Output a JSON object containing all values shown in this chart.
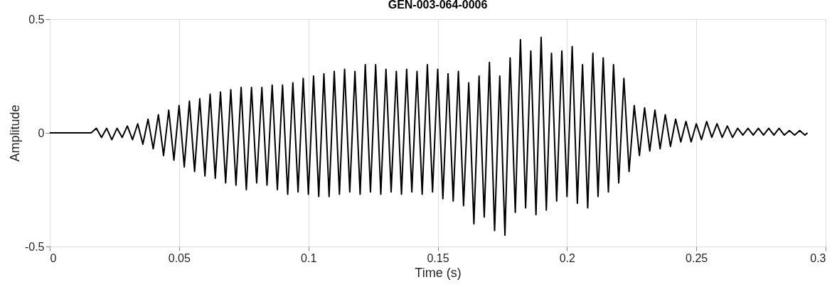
{
  "chart_data": {
    "type": "line",
    "title": "GEN-003-064-0006",
    "xlabel": "Time (s)",
    "ylabel": "Amplitude",
    "xlim": [
      0,
      0.3
    ],
    "xticks": [
      0,
      0.05,
      0.1,
      0.15,
      0.2,
      0.25,
      0.3
    ],
    "ylim": [
      -0.5,
      0.5
    ],
    "yticks": [
      -0.5,
      0,
      0.5
    ],
    "grid": "x",
    "series": [
      {
        "color": "#000000",
        "x": [
          0,
          0.016,
          0.018,
          0.02,
          0.022,
          0.024,
          0.026,
          0.028,
          0.03,
          0.032,
          0.034,
          0.036,
          0.038,
          0.04,
          0.042,
          0.044,
          0.046,
          0.048,
          0.05,
          0.052,
          0.054,
          0.056,
          0.058,
          0.06,
          0.062,
          0.064,
          0.066,
          0.068,
          0.07,
          0.072,
          0.074,
          0.076,
          0.078,
          0.08,
          0.082,
          0.084,
          0.086,
          0.088,
          0.09,
          0.092,
          0.094,
          0.096,
          0.098,
          0.1,
          0.102,
          0.104,
          0.106,
          0.108,
          0.11,
          0.112,
          0.114,
          0.116,
          0.118,
          0.12,
          0.122,
          0.124,
          0.126,
          0.128,
          0.13,
          0.132,
          0.134,
          0.136,
          0.138,
          0.14,
          0.142,
          0.144,
          0.146,
          0.148,
          0.15,
          0.152,
          0.154,
          0.156,
          0.158,
          0.16,
          0.162,
          0.164,
          0.166,
          0.168,
          0.17,
          0.172,
          0.174,
          0.176,
          0.178,
          0.18,
          0.182,
          0.184,
          0.186,
          0.188,
          0.19,
          0.192,
          0.194,
          0.196,
          0.198,
          0.2,
          0.202,
          0.204,
          0.206,
          0.208,
          0.21,
          0.212,
          0.214,
          0.216,
          0.218,
          0.22,
          0.222,
          0.224,
          0.226,
          0.228,
          0.23,
          0.232,
          0.234,
          0.236,
          0.238,
          0.24,
          0.242,
          0.244,
          0.246,
          0.248,
          0.25,
          0.252,
          0.254,
          0.256,
          0.258,
          0.26,
          0.262,
          0.264,
          0.266,
          0.268,
          0.27,
          0.272,
          0.274,
          0.276,
          0.278,
          0.28,
          0.282,
          0.284,
          0.286,
          0.288,
          0.29,
          0.292,
          0.293
        ],
        "values": [
          0,
          0,
          0.02,
          -0.02,
          0.02,
          -0.03,
          0.02,
          -0.02,
          0.03,
          -0.03,
          0.04,
          -0.05,
          0.06,
          -0.07,
          0.08,
          -0.1,
          0.1,
          -0.12,
          0.12,
          -0.15,
          0.14,
          -0.17,
          0.15,
          -0.19,
          0.17,
          -0.2,
          0.18,
          -0.22,
          0.19,
          -0.23,
          0.2,
          -0.25,
          0.2,
          -0.22,
          0.2,
          -0.23,
          0.21,
          -0.25,
          0.21,
          -0.27,
          0.22,
          -0.26,
          0.24,
          -0.27,
          0.25,
          -0.28,
          0.26,
          -0.28,
          0.27,
          -0.27,
          0.28,
          -0.26,
          0.27,
          -0.27,
          0.3,
          -0.26,
          0.3,
          -0.27,
          0.28,
          -0.26,
          0.27,
          -0.27,
          0.28,
          -0.26,
          0.27,
          -0.27,
          0.3,
          -0.26,
          0.28,
          -0.29,
          0.26,
          -0.3,
          0.27,
          -0.32,
          0.22,
          -0.4,
          0.25,
          -0.37,
          0.31,
          -0.43,
          0.25,
          -0.45,
          0.33,
          -0.35,
          0.41,
          -0.33,
          0.36,
          -0.36,
          0.42,
          -0.34,
          0.35,
          -0.3,
          0.36,
          -0.28,
          0.38,
          -0.31,
          0.3,
          -0.33,
          0.35,
          -0.28,
          0.33,
          -0.26,
          0.3,
          -0.22,
          0.24,
          -0.17,
          0.12,
          -0.1,
          0.11,
          -0.08,
          0.1,
          -0.07,
          0.08,
          -0.06,
          0.06,
          -0.04,
          0.05,
          -0.04,
          0.04,
          -0.03,
          0.05,
          -0.02,
          0.04,
          -0.02,
          0.03,
          -0.02,
          0.02,
          -0.01,
          0.02,
          -0.01,
          0.02,
          -0.01,
          0.02,
          -0.01,
          0.02,
          -0.01,
          0.01,
          -0.01,
          0.01,
          -0.01,
          0
        ]
      }
    ]
  }
}
